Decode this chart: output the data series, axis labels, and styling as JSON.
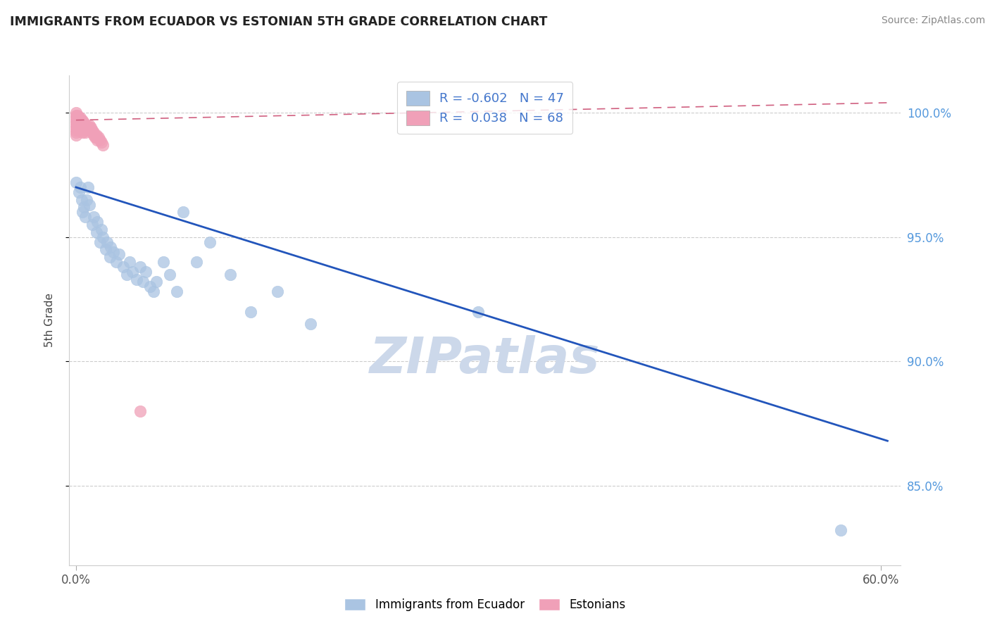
{
  "title": "IMMIGRANTS FROM ECUADOR VS ESTONIAN 5TH GRADE CORRELATION CHART",
  "source_text": "Source: ZipAtlas.com",
  "xlabel_blue": "Immigrants from Ecuador",
  "xlabel_pink": "Estonians",
  "ylabel": "5th Grade",
  "R_blue": -0.602,
  "N_blue": 47,
  "R_pink": 0.038,
  "N_pink": 68,
  "xlim": [
    -0.005,
    0.615
  ],
  "ylim": [
    0.818,
    1.015
  ],
  "xtick_labels": [
    "0.0%",
    "60.0%"
  ],
  "xtick_vals": [
    0.0,
    0.6
  ],
  "ytick_labels": [
    "85.0%",
    "90.0%",
    "95.0%",
    "100.0%"
  ],
  "ytick_vals": [
    0.85,
    0.9,
    0.95,
    1.0
  ],
  "color_blue": "#aac4e2",
  "color_pink": "#f0a0b8",
  "trendline_blue": "#2255bb",
  "trendline_pink": "#d06080",
  "watermark_color": "#ccd8ea",
  "background_color": "#ffffff",
  "blue_trendline_x": [
    0.0,
    0.605
  ],
  "blue_trendline_y": [
    0.97,
    0.868
  ],
  "pink_trendline_x": [
    0.0,
    0.605
  ],
  "pink_trendline_y": [
    0.997,
    1.004
  ],
  "blue_scatter_x": [
    0.0,
    0.002,
    0.003,
    0.004,
    0.005,
    0.006,
    0.007,
    0.008,
    0.009,
    0.01,
    0.012,
    0.013,
    0.015,
    0.016,
    0.018,
    0.019,
    0.02,
    0.022,
    0.023,
    0.025,
    0.026,
    0.028,
    0.03,
    0.032,
    0.035,
    0.038,
    0.04,
    0.042,
    0.045,
    0.048,
    0.05,
    0.052,
    0.055,
    0.058,
    0.06,
    0.065,
    0.07,
    0.075,
    0.08,
    0.09,
    0.1,
    0.115,
    0.13,
    0.15,
    0.175,
    0.3,
    0.57
  ],
  "blue_scatter_y": [
    0.972,
    0.968,
    0.97,
    0.965,
    0.96,
    0.962,
    0.958,
    0.965,
    0.97,
    0.963,
    0.955,
    0.958,
    0.952,
    0.956,
    0.948,
    0.953,
    0.95,
    0.945,
    0.948,
    0.942,
    0.946,
    0.944,
    0.94,
    0.943,
    0.938,
    0.935,
    0.94,
    0.936,
    0.933,
    0.938,
    0.932,
    0.936,
    0.93,
    0.928,
    0.932,
    0.94,
    0.935,
    0.928,
    0.96,
    0.94,
    0.948,
    0.935,
    0.92,
    0.928,
    0.915,
    0.92,
    0.832
  ],
  "pink_scatter_x": [
    0.0,
    0.0,
    0.0,
    0.0,
    0.0,
    0.0,
    0.0,
    0.0,
    0.0,
    0.0,
    0.001,
    0.001,
    0.001,
    0.001,
    0.001,
    0.002,
    0.002,
    0.002,
    0.002,
    0.002,
    0.003,
    0.003,
    0.003,
    0.003,
    0.003,
    0.003,
    0.004,
    0.004,
    0.004,
    0.004,
    0.004,
    0.005,
    0.005,
    0.005,
    0.005,
    0.005,
    0.005,
    0.006,
    0.006,
    0.006,
    0.006,
    0.007,
    0.007,
    0.007,
    0.007,
    0.008,
    0.008,
    0.008,
    0.009,
    0.009,
    0.01,
    0.01,
    0.01,
    0.011,
    0.011,
    0.012,
    0.012,
    0.013,
    0.013,
    0.014,
    0.015,
    0.015,
    0.016,
    0.017,
    0.018,
    0.019,
    0.02,
    0.048
  ],
  "pink_scatter_y": [
    1.0,
    0.999,
    0.998,
    0.997,
    0.996,
    0.995,
    0.994,
    0.993,
    0.992,
    0.991,
    0.999,
    0.998,
    0.997,
    0.996,
    0.994,
    0.998,
    0.997,
    0.996,
    0.994,
    0.993,
    0.998,
    0.997,
    0.996,
    0.995,
    0.994,
    0.993,
    0.997,
    0.996,
    0.995,
    0.994,
    0.993,
    0.997,
    0.996,
    0.995,
    0.994,
    0.993,
    0.992,
    0.996,
    0.995,
    0.994,
    0.993,
    0.995,
    0.994,
    0.993,
    0.992,
    0.995,
    0.994,
    0.993,
    0.994,
    0.993,
    0.995,
    0.994,
    0.993,
    0.994,
    0.993,
    0.993,
    0.992,
    0.992,
    0.991,
    0.99,
    0.991,
    0.99,
    0.989,
    0.99,
    0.989,
    0.988,
    0.987,
    0.88
  ]
}
